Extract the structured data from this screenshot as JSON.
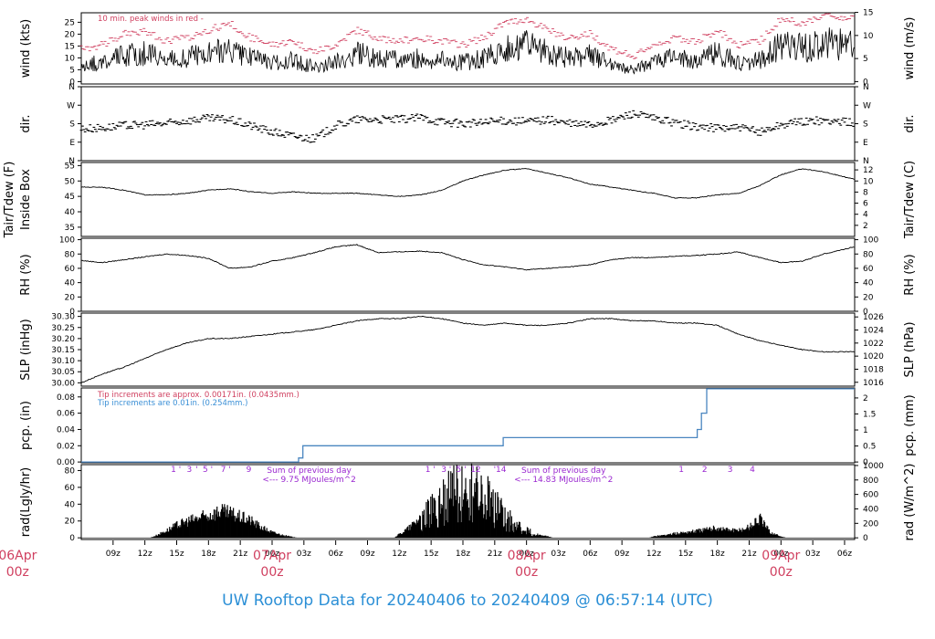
{
  "title": "UW Rooftop Data for 20240406  to  20240409 @ 06:57:14  (UTC)",
  "colors": {
    "red": "#d04060",
    "blue": "#3a8fd6",
    "purple": "#9a28d0",
    "trace": "#000000",
    "pcp_line": "#4a86c0"
  },
  "time_axis": {
    "start_hour": 6.0,
    "end_hour": 78.95,
    "tick_hours": [
      9,
      12,
      15,
      18,
      21,
      24,
      27,
      30,
      33,
      36,
      39,
      42,
      45,
      48,
      51,
      54,
      57,
      60,
      63,
      66,
      69,
      72,
      75,
      78
    ],
    "tick_labels": [
      "09z",
      "12z",
      "15z",
      "18z",
      "21z",
      "00z",
      "03z",
      "06z",
      "09z",
      "12z",
      "15z",
      "18z",
      "21z",
      "00z",
      "03z",
      "06z",
      "09z",
      "12z",
      "15z",
      "18z",
      "21z",
      "00z",
      "03z",
      "06z"
    ],
    "day_labels": [
      {
        "hour": 0,
        "top": "06Apr",
        "bottom": "00z"
      },
      {
        "hour": 24,
        "top": "07Apr",
        "bottom": "00z"
      },
      {
        "hour": 48,
        "top": "08Apr",
        "bottom": "00z"
      },
      {
        "hour": 72,
        "top": "09Apr",
        "bottom": "00z"
      }
    ]
  },
  "chart_data": [
    {
      "type": "line",
      "id": "wind",
      "ylabel_left": "wind (kts)",
      "ylabel_right": "wind (m/s)",
      "left_ticks": [
        0,
        5,
        10,
        15,
        20,
        25
      ],
      "right_ticks": [
        0,
        5,
        10,
        15
      ],
      "ylim": [
        -1,
        29
      ],
      "annotation": "10 min. peak winds in red -",
      "series": [
        {
          "x": [
            6,
            8,
            10,
            12,
            14,
            16,
            18,
            20,
            22,
            24,
            26,
            28,
            30,
            32,
            34,
            36,
            38,
            40,
            42,
            44,
            46,
            48,
            50,
            52,
            54,
            56,
            58,
            60,
            62,
            64,
            66,
            68,
            70,
            72,
            74,
            76,
            78.95
          ],
          "values": [
            7,
            8,
            11,
            12,
            9,
            10,
            12,
            14,
            10,
            8,
            9,
            6,
            8,
            12,
            10,
            9,
            10,
            9,
            8,
            10,
            14,
            15,
            12,
            10,
            11,
            7,
            5,
            8,
            10,
            9,
            12,
            8,
            9,
            15,
            14,
            16,
            15
          ]
        }
      ]
    },
    {
      "type": "scatter",
      "id": "dir",
      "ylabel_left": "dir.",
      "ylabel_right": "dir.",
      "tick_labels": [
        "N",
        "E",
        "S",
        "W",
        "N"
      ],
      "ylim": [
        0,
        360
      ],
      "series": [
        {
          "x": [
            6,
            8,
            10,
            12,
            14,
            16,
            18,
            20,
            22,
            24,
            26,
            28,
            30,
            32,
            34,
            36,
            38,
            40,
            42,
            44,
            46,
            48,
            50,
            52,
            54,
            56,
            58,
            60,
            62,
            64,
            66,
            68,
            70,
            72,
            74,
            76,
            78.95
          ],
          "values": [
            155,
            160,
            170,
            175,
            180,
            195,
            205,
            200,
            170,
            140,
            120,
            105,
            170,
            200,
            200,
            200,
            210,
            190,
            180,
            185,
            195,
            190,
            200,
            180,
            175,
            195,
            230,
            205,
            185,
            165,
            160,
            160,
            140,
            175,
            190,
            195,
            185
          ]
        }
      ]
    },
    {
      "type": "line",
      "id": "temp",
      "ylabel_left": "Tair/Tdew (F)",
      "ylabel_left2": "Inside Box",
      "ylabel_right": "Tair/Tdew (C)",
      "left_ticks": [
        35,
        40,
        45,
        50,
        55
      ],
      "right_ticks": [
        2,
        4,
        6,
        8,
        10,
        12
      ],
      "ylim": [
        32,
        56
      ],
      "series": [
        {
          "x": [
            6,
            8,
            10,
            12,
            14,
            16,
            18,
            20,
            22,
            24,
            26,
            28,
            30,
            32,
            34,
            36,
            38,
            40,
            42,
            44,
            46,
            48,
            50,
            52,
            54,
            56,
            58,
            60,
            62,
            64,
            66,
            68,
            70,
            72,
            74,
            76,
            78.95
          ],
          "values": [
            48,
            48,
            47,
            45.5,
            45.5,
            46,
            47,
            47.5,
            46.5,
            46,
            46.5,
            46,
            46,
            46,
            45.5,
            45,
            45.5,
            47,
            50,
            52,
            53.5,
            54,
            52.5,
            51,
            49,
            48,
            47,
            46,
            44.5,
            44.5,
            45.5,
            46,
            48.5,
            52,
            54,
            53,
            50.5
          ]
        }
      ]
    },
    {
      "type": "line",
      "id": "rh",
      "ylabel_left": "RH (%)",
      "ylabel_right": "RH (%)",
      "left_ticks": [
        0,
        20,
        40,
        60,
        80,
        100
      ],
      "right_ticks": [
        0,
        20,
        40,
        60,
        80,
        100
      ],
      "ylim": [
        0,
        102
      ],
      "series": [
        {
          "x": [
            6,
            8,
            10,
            12,
            14,
            16,
            18,
            20,
            22,
            24,
            26,
            28,
            30,
            32,
            34,
            36,
            38,
            40,
            42,
            44,
            46,
            48,
            50,
            52,
            54,
            56,
            58,
            60,
            62,
            64,
            66,
            68,
            70,
            72,
            74,
            76,
            78.95
          ],
          "values": [
            71,
            68,
            72,
            76,
            80,
            78,
            74,
            60,
            62,
            70,
            75,
            82,
            90,
            93,
            82,
            83,
            84,
            82,
            72,
            65,
            62,
            58,
            60,
            62,
            65,
            72,
            75,
            75,
            77,
            78,
            80,
            83,
            75,
            68,
            70,
            80,
            90
          ]
        }
      ]
    },
    {
      "type": "line",
      "id": "slp",
      "ylabel_left": "SLP (inHg)",
      "ylabel_right": "SLP (hPa)",
      "left_ticks": [
        30.0,
        30.05,
        30.1,
        30.15,
        30.2,
        30.25,
        30.3
      ],
      "left_tick_labels": [
        "30.00",
        "30.05",
        "30.10",
        "30.15",
        "30.20",
        "30.25",
        "30.30"
      ],
      "right_ticks": [
        1016,
        1018,
        1020,
        1022,
        1024,
        1026
      ],
      "ylim": [
        29.985,
        30.315
      ],
      "series": [
        {
          "x": [
            6,
            8,
            10,
            12,
            14,
            16,
            18,
            20,
            22,
            24,
            26,
            28,
            30,
            32,
            34,
            36,
            38,
            40,
            42,
            44,
            46,
            48,
            50,
            52,
            54,
            56,
            58,
            60,
            62,
            64,
            66,
            68,
            70,
            72,
            74,
            76,
            78.95
          ],
          "values": [
            30.0,
            30.04,
            30.07,
            30.11,
            30.15,
            30.18,
            30.2,
            30.2,
            30.21,
            30.22,
            30.23,
            30.24,
            30.26,
            30.28,
            30.29,
            30.29,
            30.3,
            30.29,
            30.27,
            30.26,
            30.27,
            30.26,
            30.26,
            30.27,
            30.29,
            30.29,
            30.28,
            30.28,
            30.27,
            30.27,
            30.26,
            30.22,
            30.19,
            30.17,
            30.15,
            30.14,
            30.14
          ]
        }
      ]
    },
    {
      "type": "line",
      "id": "pcp",
      "ylabel_left": "pcp. (in)",
      "ylabel_right": "pcp. (mm)",
      "left_ticks": [
        0.0,
        0.02,
        0.04,
        0.06,
        0.08
      ],
      "left_tick_labels": [
        "0.00",
        "0.02",
        "0.04",
        "0.06",
        "0.08"
      ],
      "right_ticks": [
        0,
        0.5,
        1,
        1.5,
        2
      ],
      "right_tick_labels": [
        "0",
        "0.5",
        "1",
        "1.5",
        "2"
      ],
      "ylim": [
        -0.001,
        0.091
      ],
      "annotation_red": "Tip increments are approx. 0.00171in. (0.0435mm.)",
      "annotation_blue": "Tip increments are 0.01in. (0.254mm.)",
      "series": [
        {
          "x": [
            6,
            26.5,
            26.5,
            26.9,
            26.9,
            45.8,
            45.8,
            64.1,
            64.1,
            64.5,
            64.5,
            65.0,
            65.0,
            78.95
          ],
          "values": [
            0,
            0,
            0.005,
            0.005,
            0.02,
            0.02,
            0.03,
            0.03,
            0.04,
            0.04,
            0.06,
            0.06,
            0.09,
            0.09
          ]
        }
      ]
    },
    {
      "type": "area",
      "id": "rad",
      "ylabel_left": "rad(Lgly/hr)",
      "ylabel_right": "rad (W/m^2)",
      "left_ticks": [
        0,
        20,
        40,
        60,
        80
      ],
      "right_ticks": [
        0,
        200,
        400,
        600,
        800,
        1000
      ],
      "ylim": [
        -2,
        87
      ],
      "day_notes": [
        {
          "hour": 27.5,
          "line1": "Sum of previous day",
          "line2": "<--- 9.75 MJoules/m^2"
        },
        {
          "hour": 51.5,
          "line1": "Sum of previous day",
          "line2": "<--- 14.83 MJoules/m^2"
        }
      ],
      "hour_markers": [
        {
          "hour": 14.7,
          "label": "1"
        },
        {
          "hour": 15.3,
          "label": "'"
        },
        {
          "hour": 16.2,
          "label": "3"
        },
        {
          "hour": 16.9,
          "label": "'"
        },
        {
          "hour": 17.7,
          "label": "5"
        },
        {
          "hour": 18.3,
          "label": "'"
        },
        {
          "hour": 19.4,
          "label": "7"
        },
        {
          "hour": 20.0,
          "label": "'"
        },
        {
          "hour": 21.8,
          "label": "9"
        },
        {
          "hour": 38.7,
          "label": "1"
        },
        {
          "hour": 39.3,
          "label": "'"
        },
        {
          "hour": 40.2,
          "label": "3"
        },
        {
          "hour": 40.8,
          "label": "'"
        },
        {
          "hour": 41.6,
          "label": "5"
        },
        {
          "hour": 42.2,
          "label": "'"
        },
        {
          "hour": 43.2,
          "label": "12"
        },
        {
          "hour": 45.0,
          "label": "'"
        },
        {
          "hour": 45.6,
          "label": "14"
        },
        {
          "hour": 62.6,
          "label": "1"
        },
        {
          "hour": 64.8,
          "label": "2"
        },
        {
          "hour": 67.2,
          "label": "3"
        },
        {
          "hour": 69.3,
          "label": "4"
        }
      ],
      "series": [
        {
          "x": [
            12.5,
            13,
            14,
            15,
            16,
            17,
            18,
            19,
            20,
            21,
            22,
            23,
            24,
            25,
            26,
            26.5,
            35.5,
            36,
            37,
            38,
            39,
            40,
            41,
            42,
            43,
            44,
            45,
            46,
            47,
            48,
            49,
            50,
            50.5,
            59.5,
            60,
            62,
            64,
            66,
            67,
            68,
            69,
            70,
            71,
            72,
            72.5
          ],
          "values": [
            0,
            3,
            10,
            18,
            24,
            28,
            32,
            38,
            35,
            30,
            25,
            15,
            8,
            4,
            1,
            0,
            0,
            5,
            15,
            30,
            45,
            65,
            75,
            80,
            78,
            70,
            55,
            35,
            22,
            12,
            5,
            2,
            0,
            0,
            2,
            6,
            10,
            14,
            12,
            10,
            16,
            28,
            8,
            2,
            0
          ]
        }
      ]
    }
  ]
}
